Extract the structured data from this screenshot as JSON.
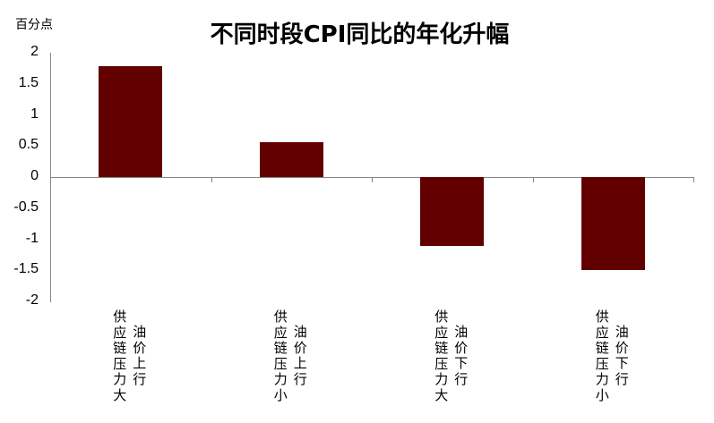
{
  "chart_data": {
    "type": "bar",
    "title": "不同时段CPI同比的年化升幅",
    "ylabel": "百分点",
    "xlabel": "",
    "ylim": [
      -2,
      2
    ],
    "yticks": [
      "2",
      "1.5",
      "1",
      "0.5",
      "0",
      "-0.5",
      "-1",
      "-1.5",
      "-2"
    ],
    "grid": false,
    "legend": null,
    "categories": [
      "供应链压力大 油价上行",
      "供应链压力小 油价上行",
      "供应链压力大 油价下行",
      "供应链压力小 油价下行"
    ],
    "category_lines": [
      [
        "供应链压力大",
        "油价上行"
      ],
      [
        "供应链压力小",
        "油价上行"
      ],
      [
        "供应链压力大",
        "油价下行"
      ],
      [
        "供应链压力小",
        "油价下行"
      ]
    ],
    "values": [
      1.78,
      0.56,
      -1.11,
      -1.5
    ],
    "bar_color": "#620000"
  }
}
